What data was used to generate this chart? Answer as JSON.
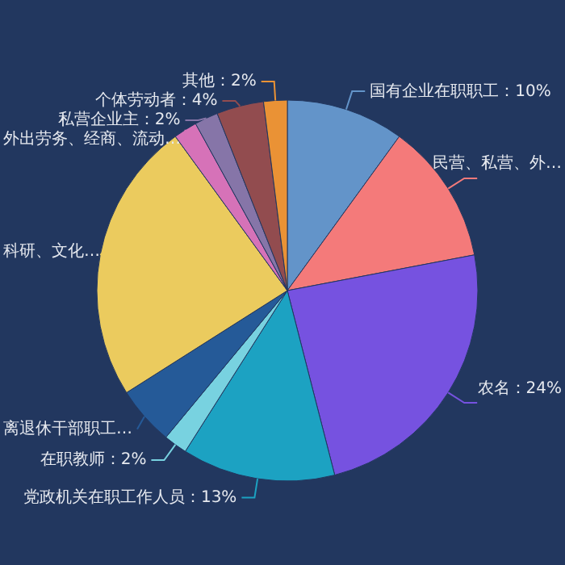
{
  "chart_data": {
    "type": "pie",
    "categories": [
      "国有企业在职职工",
      "民营、私营、外…",
      "农名",
      "党政机关在职工作人员",
      "在职教师",
      "离退休干部职工…",
      "科研、文化…",
      "外出劳务、经商、流动…",
      "私营企业主",
      "个体劳动者",
      "其他"
    ],
    "values": [
      10,
      12,
      24,
      13,
      2,
      5,
      24,
      2,
      2,
      4,
      2
    ],
    "value_labels": [
      "10%",
      null,
      "24%",
      "13%",
      "2%",
      null,
      null,
      null,
      "2%",
      "4%",
      "2%"
    ],
    "colors": [
      "#6394c9",
      "#f47a7a",
      "#7652e0",
      "#1ca2c2",
      "#78d2e0",
      "#255a98",
      "#ebcb5e",
      "#d672b8",
      "#8675a8",
      "#924c4f",
      "#ea9235"
    ]
  }
}
